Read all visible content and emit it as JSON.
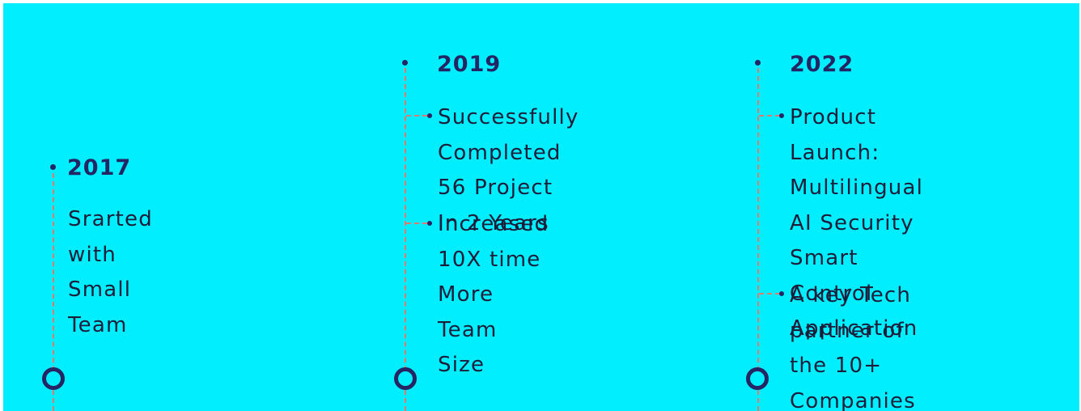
{
  "timeline": [
    {
      "year": "2017",
      "items": [
        "Srarted with Small\nTeam"
      ]
    },
    {
      "year": "2019",
      "items": [
        "Successfully Completed\n56 Project In 2 Years",
        "Increased 10X time\nMore Team Size"
      ]
    },
    {
      "year": "2022",
      "items": [
        "Product Launch:\nMultilingual AI Security\nSmart Control\nApplication",
        "A key Tech partner of\nthe 10+ Companies"
      ]
    }
  ],
  "colors": {
    "background": "#00eefe",
    "accent": "#252563",
    "dash": "#e07a70"
  }
}
